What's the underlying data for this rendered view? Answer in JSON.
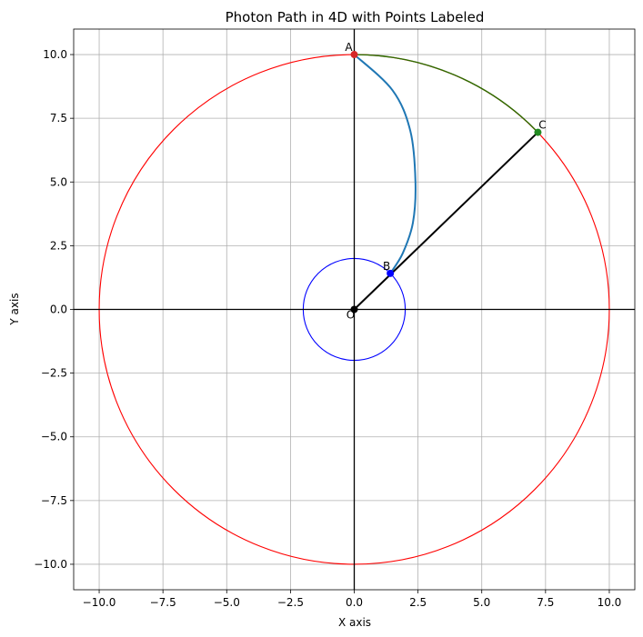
{
  "chart_data": {
    "type": "line",
    "title": "Photon Path in 4D with Points Labeled",
    "xlabel": "X axis",
    "ylabel": "Y axis",
    "xlim": [
      -11,
      11
    ],
    "ylim": [
      -11,
      11
    ],
    "grid": true,
    "x_ticks": [
      -10.0,
      -7.5,
      -5.0,
      -2.5,
      0.0,
      2.5,
      5.0,
      7.5,
      10.0
    ],
    "y_ticks": [
      -10.0,
      -7.5,
      -5.0,
      -2.5,
      0.0,
      2.5,
      5.0,
      7.5,
      10.0
    ],
    "x_tick_labels": [
      "−10.0",
      "−7.5",
      "−5.0",
      "−2.5",
      "0.0",
      "2.5",
      "5.0",
      "7.5",
      "10.0"
    ],
    "y_tick_labels": [
      "−10.0",
      "−7.5",
      "−5.0",
      "−2.5",
      "0.0",
      "2.5",
      "5.0",
      "7.5",
      "10.0"
    ],
    "circles": [
      {
        "cx": 0,
        "cy": 0,
        "r": 10,
        "color": "#ff0000"
      },
      {
        "cx": 0,
        "cy": 0,
        "r": 2,
        "color": "#0000ff"
      }
    ],
    "axis_lines": {
      "color": "#000000"
    },
    "series": [
      {
        "color": "#1f77b4",
        "x": [
          0,
          1.5,
          2.2,
          2.4,
          2.3,
          1.9,
          1.414
        ],
        "y": [
          10,
          8.6,
          7.0,
          5.0,
          3.4,
          2.2,
          1.414
        ]
      },
      {
        "color": "#2e6b00",
        "arc": {
          "r": 10,
          "from_point": "A",
          "to_point": "C"
        }
      },
      {
        "color": "#000000",
        "x": [
          0,
          7.2
        ],
        "y": [
          0,
          6.95
        ]
      }
    ],
    "points": [
      {
        "label": "A",
        "x": 0,
        "y": 10,
        "color": "#d62728"
      },
      {
        "label": "B",
        "x": 1.414,
        "y": 1.414,
        "color": "#0000ff"
      },
      {
        "label": "C",
        "x": 7.2,
        "y": 6.95,
        "color": "#228b22"
      },
      {
        "label": "O",
        "x": 0,
        "y": 0,
        "color": "#000000"
      }
    ]
  }
}
